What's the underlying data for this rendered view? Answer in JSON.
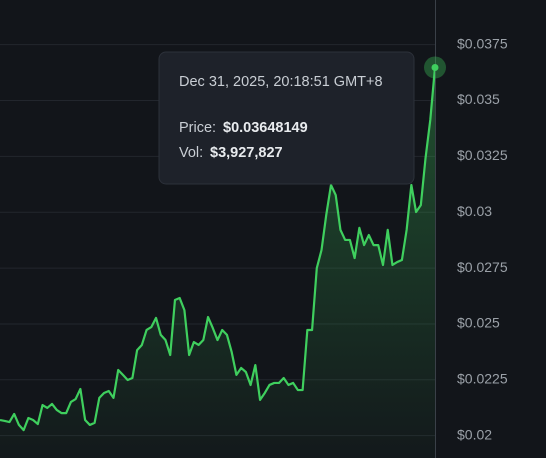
{
  "chart_data": {
    "type": "line",
    "values": [
      0.0207,
      0.02066,
      0.02061,
      0.02097,
      0.02048,
      0.02025,
      0.02079,
      0.0207,
      0.02052,
      0.02137,
      0.02124,
      0.02142,
      0.02115,
      0.02101,
      0.02101,
      0.02151,
      0.02164,
      0.02209,
      0.0207,
      0.02048,
      0.02057,
      0.02169,
      0.02191,
      0.022,
      0.02169,
      0.02294,
      0.02272,
      0.02249,
      0.02258,
      0.02383,
      0.02406,
      0.02473,
      0.02486,
      0.02527,
      0.02451,
      0.02428,
      0.02361,
      0.02607,
      0.02616,
      0.02562,
      0.02361,
      0.02419,
      0.02406,
      0.02428,
      0.02531,
      0.02482,
      0.02428,
      0.02473,
      0.02451,
      0.02374,
      0.02272,
      0.02303,
      0.02285,
      0.02227,
      0.02316,
      0.0216,
      0.02191,
      0.02227,
      0.02236,
      0.02236,
      0.02258,
      0.02227,
      0.02236,
      0.02204,
      0.02204,
      0.02473,
      0.02473,
      0.0275,
      0.02831,
      0.02988,
      0.03122,
      0.03077,
      0.02921,
      0.02876,
      0.02876,
      0.02795,
      0.0293,
      0.02853,
      0.02898,
      0.02853,
      0.02853,
      0.02764,
      0.02921,
      0.02764,
      0.02777,
      0.02786,
      0.02921,
      0.03122,
      0.03001,
      0.03032,
      0.03243,
      0.03413,
      0.03648
    ],
    "color": "#3fcf5e",
    "ylim": [
      0.019,
      0.0395
    ],
    "yticks": [
      {
        "value": 0.02,
        "label": "$0.02"
      },
      {
        "value": 0.0225,
        "label": "$0.0225"
      },
      {
        "value": 0.025,
        "label": "$0.025"
      },
      {
        "value": 0.0275,
        "label": "$0.0275"
      },
      {
        "value": 0.03,
        "label": "$0.03"
      },
      {
        "value": 0.0325,
        "label": "$0.0325"
      },
      {
        "value": 0.035,
        "label": "$0.035"
      },
      {
        "value": 0.0375,
        "label": "$0.0375"
      }
    ],
    "grid": true,
    "tooltip": {
      "time": "Dec 31, 2025, 20:18:51 GMT+8",
      "price_label": "Price:",
      "price": "$0.03648149",
      "vol_label": "Vol:",
      "vol": "$3,927,827"
    }
  }
}
